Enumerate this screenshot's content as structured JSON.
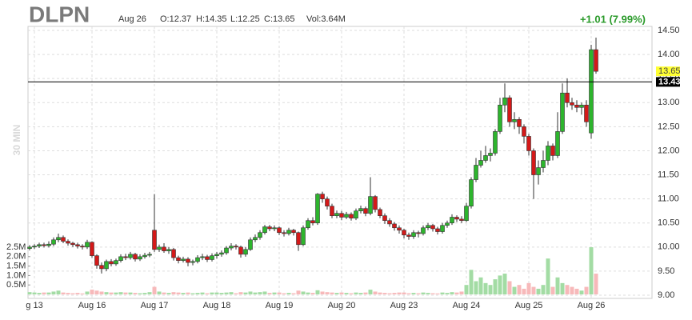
{
  "chart_data": {
    "type": "candlestick",
    "title": "DLPN",
    "date": "Aug 26",
    "ohlc_text": [
      "O:12.37",
      "H:14.35",
      "L:12.25",
      "C:13.65",
      "Vol:3.64M"
    ],
    "change": "+1.01 (7.99%)",
    "interval": "30 MIN",
    "last_price": 13.65,
    "line_price": 13.43,
    "up_color": "#2db52d",
    "down_color": "#d41919",
    "vol_up_color": "#a3dca4",
    "vol_down_color": "#f7b9ba",
    "ylim": [
      9,
      14.5
    ],
    "yticks": [
      {
        "value": 9,
        "label": "9.00"
      },
      {
        "value": 9.5,
        "label": "9.50"
      },
      {
        "value": 10,
        "label": "10.00"
      },
      {
        "value": 10.5,
        "label": "10.50"
      },
      {
        "value": 11,
        "label": "11.00"
      },
      {
        "value": 11.5,
        "label": "11.50"
      },
      {
        "value": 12,
        "label": "12.00"
      },
      {
        "value": 12.5,
        "label": "12.50"
      },
      {
        "value": 13,
        "label": "13.00"
      },
      {
        "value": 13.5,
        "label": "13.50"
      },
      {
        "value": 14,
        "label": "14.00"
      },
      {
        "value": 14.5,
        "label": "14.50"
      }
    ],
    "y2lim": [
      0,
      2.5
    ],
    "y2ticks": [
      {
        "value": 0.5,
        "label": "0.5M"
      },
      {
        "value": 1,
        "label": "1.0M"
      },
      {
        "value": 1.5,
        "label": "1.5M"
      },
      {
        "value": 2,
        "label": "2.0M"
      },
      {
        "value": 2.5,
        "label": "2.5M"
      }
    ],
    "xticks": [
      {
        "value": 1,
        "label": "g 13"
      },
      {
        "value": 13,
        "label": "Aug 16"
      },
      {
        "value": 26,
        "label": "Aug 17"
      },
      {
        "value": 39,
        "label": "Aug 18"
      },
      {
        "value": 52,
        "label": "Aug 19"
      },
      {
        "value": 65,
        "label": "Aug 20"
      },
      {
        "value": 78,
        "label": "Aug 23"
      },
      {
        "value": 91,
        "label": "Aug 24"
      },
      {
        "value": 104,
        "label": "Aug 25"
      },
      {
        "value": 117,
        "label": "Aug 26"
      }
    ],
    "grid": true,
    "open": [
      9.97,
      10.0,
      10.02,
      10.05,
      10.03,
      10.06,
      10.15,
      10.2,
      10.12,
      10.08,
      10.05,
      10.02,
      10.0,
      10.1,
      9.82,
      9.62,
      9.55,
      9.7,
      9.65,
      9.72,
      9.8,
      9.78,
      9.85,
      9.75,
      9.8,
      9.83,
      10.35,
      9.95,
      10.0,
      9.92,
      9.95,
      9.78,
      9.72,
      9.75,
      9.68,
      9.7,
      9.78,
      9.8,
      9.74,
      9.82,
      9.85,
      9.88,
      9.98,
      10.02,
      10.0,
      9.85,
      9.95,
      10.15,
      10.2,
      10.3,
      10.42,
      10.38,
      10.4,
      10.3,
      10.28,
      10.35,
      10.3,
      10.05,
      10.4,
      10.55,
      10.5,
      11.1,
      11.0,
      10.85,
      10.65,
      10.7,
      10.62,
      10.68,
      10.6,
      10.75,
      10.8,
      10.7,
      11.05,
      10.78,
      10.65,
      10.55,
      10.48,
      10.4,
      10.35,
      10.25,
      10.22,
      10.3,
      10.28,
      10.4,
      10.45,
      10.38,
      10.32,
      10.45,
      10.5,
      10.62,
      10.58,
      10.55,
      10.85,
      11.4,
      11.7,
      11.8,
      11.9,
      11.95,
      12.4,
      12.95,
      13.1,
      12.6,
      12.65,
      12.5,
      12.3,
      12.0,
      11.5,
      11.65,
      11.8,
      12.1,
      11.9,
      12.4,
      13.2,
      13.0,
      12.95,
      12.9,
      12.95,
      12.37,
      14.1
    ],
    "high": [
      10.04,
      10.06,
      10.09,
      10.09,
      10.12,
      10.2,
      10.28,
      10.24,
      10.16,
      10.11,
      10.09,
      10.06,
      10.15,
      10.12,
      9.85,
      9.68,
      9.74,
      9.75,
      9.76,
      9.85,
      9.86,
      9.9,
      9.88,
      9.85,
      9.88,
      9.9,
      11.1,
      10.05,
      10.08,
      10.0,
      9.98,
      9.82,
      9.8,
      9.79,
      9.74,
      9.83,
      9.86,
      9.84,
      9.87,
      9.9,
      9.93,
      10.02,
      10.08,
      10.06,
      10.03,
      10.0,
      10.2,
      10.26,
      10.35,
      10.46,
      10.46,
      10.45,
      10.43,
      10.35,
      10.4,
      10.38,
      10.32,
      10.45,
      10.6,
      10.62,
      11.12,
      11.15,
      11.05,
      10.9,
      10.76,
      10.75,
      10.73,
      10.72,
      10.8,
      10.86,
      10.84,
      11.45,
      11.08,
      10.82,
      10.7,
      10.6,
      10.52,
      10.45,
      10.38,
      10.3,
      10.35,
      10.34,
      10.45,
      10.5,
      10.48,
      10.42,
      10.5,
      10.55,
      10.68,
      10.66,
      10.64,
      10.92,
      11.45,
      11.85,
      12.0,
      12.1,
      12.05,
      12.45,
      13.1,
      13.4,
      13.15,
      12.8,
      12.7,
      12.55,
      12.35,
      12.05,
      11.8,
      12.0,
      12.2,
      12.15,
      12.8,
      13.4,
      13.5,
      13.1,
      13.05,
      13.0,
      13.05,
      14.2,
      14.35
    ],
    "low": [
      9.93,
      9.96,
      9.98,
      9.99,
      9.99,
      10.02,
      10.1,
      10.08,
      10.03,
      10.0,
      9.97,
      9.95,
      9.96,
      9.78,
      9.55,
      9.45,
      9.5,
      9.6,
      9.61,
      9.68,
      9.73,
      9.74,
      9.7,
      9.71,
      9.76,
      9.79,
      9.9,
      9.9,
      9.88,
      9.86,
      9.72,
      9.66,
      9.68,
      9.6,
      9.62,
      9.66,
      9.73,
      9.69,
      9.7,
      9.76,
      9.8,
      9.84,
      9.93,
      9.95,
      9.78,
      9.8,
      9.92,
      10.1,
      10.15,
      10.26,
      10.33,
      10.33,
      10.25,
      10.22,
      10.24,
      10.24,
      9.92,
      10.02,
      10.36,
      10.45,
      10.46,
      10.92,
      10.78,
      10.6,
      10.6,
      10.56,
      10.58,
      10.55,
      10.56,
      10.7,
      10.64,
      10.66,
      10.72,
      10.6,
      10.48,
      10.42,
      10.34,
      10.28,
      10.18,
      10.15,
      10.17,
      10.2,
      10.24,
      10.35,
      10.32,
      10.26,
      10.28,
      10.4,
      10.46,
      10.52,
      10.5,
      10.52,
      10.8,
      11.35,
      11.65,
      11.75,
      11.78,
      11.9,
      12.35,
      12.8,
      12.5,
      12.45,
      12.35,
      12.15,
      11.9,
      11.0,
      11.3,
      11.55,
      11.7,
      11.8,
      11.85,
      12.35,
      12.9,
      12.85,
      12.8,
      12.75,
      12.5,
      12.25,
      13.6
    ],
    "close": [
      10.0,
      10.02,
      10.05,
      10.03,
      10.06,
      10.15,
      10.2,
      10.12,
      10.08,
      10.05,
      10.02,
      10.0,
      10.1,
      9.82,
      9.62,
      9.55,
      9.7,
      9.65,
      9.72,
      9.8,
      9.78,
      9.85,
      9.75,
      9.8,
      9.83,
      9.85,
      9.95,
      10.0,
      9.92,
      9.95,
      9.78,
      9.72,
      9.75,
      9.68,
      9.7,
      9.78,
      9.8,
      9.74,
      9.82,
      9.85,
      9.88,
      9.98,
      10.02,
      10.0,
      9.85,
      9.95,
      10.15,
      10.2,
      10.3,
      10.42,
      10.38,
      10.4,
      10.3,
      10.28,
      10.35,
      10.3,
      10.05,
      10.4,
      10.55,
      10.5,
      11.1,
      11.0,
      10.85,
      10.65,
      10.7,
      10.62,
      10.68,
      10.6,
      10.75,
      10.8,
      10.7,
      11.05,
      10.78,
      10.65,
      10.55,
      10.48,
      10.4,
      10.35,
      10.25,
      10.22,
      10.3,
      10.28,
      10.4,
      10.45,
      10.38,
      10.32,
      10.45,
      10.5,
      10.62,
      10.58,
      10.55,
      10.85,
      11.4,
      11.7,
      11.8,
      11.9,
      11.95,
      12.4,
      12.95,
      13.1,
      12.6,
      12.65,
      12.5,
      12.3,
      12.0,
      11.5,
      11.65,
      11.8,
      12.1,
      11.9,
      12.4,
      13.2,
      13.0,
      12.95,
      12.9,
      12.95,
      12.6,
      14.1,
      13.65
    ],
    "volume": [
      0.12,
      0.1,
      0.08,
      0.1,
      0.1,
      0.15,
      0.2,
      0.1,
      0.08,
      0.06,
      0.08,
      0.05,
      0.15,
      0.25,
      0.2,
      0.15,
      0.12,
      0.1,
      0.1,
      0.12,
      0.1,
      0.1,
      0.08,
      0.06,
      0.08,
      0.12,
      0.4,
      0.15,
      0.1,
      0.08,
      0.12,
      0.1,
      0.08,
      0.1,
      0.06,
      0.08,
      0.1,
      0.06,
      0.1,
      0.1,
      0.08,
      0.1,
      0.12,
      0.06,
      0.12,
      0.1,
      0.15,
      0.1,
      0.12,
      0.15,
      0.08,
      0.1,
      0.1,
      0.06,
      0.08,
      0.06,
      0.2,
      0.15,
      0.1,
      0.08,
      0.22,
      0.15,
      0.12,
      0.1,
      0.08,
      0.1,
      0.08,
      0.06,
      0.1,
      0.08,
      0.1,
      0.25,
      0.15,
      0.1,
      0.08,
      0.06,
      0.08,
      0.1,
      0.1,
      0.06,
      0.08,
      0.06,
      0.1,
      0.08,
      0.06,
      0.05,
      0.1,
      0.08,
      0.12,
      0.1,
      0.15,
      0.5,
      1.3,
      0.7,
      0.9,
      0.6,
      0.5,
      0.8,
      1.0,
      1.1,
      0.7,
      0.4,
      0.5,
      0.3,
      0.6,
      0.4,
      0.3,
      0.5,
      1.9,
      0.4,
      0.9,
      0.6,
      0.5,
      0.4,
      0.3,
      0.2,
      0.4,
      2.5,
      1.1
    ]
  }
}
